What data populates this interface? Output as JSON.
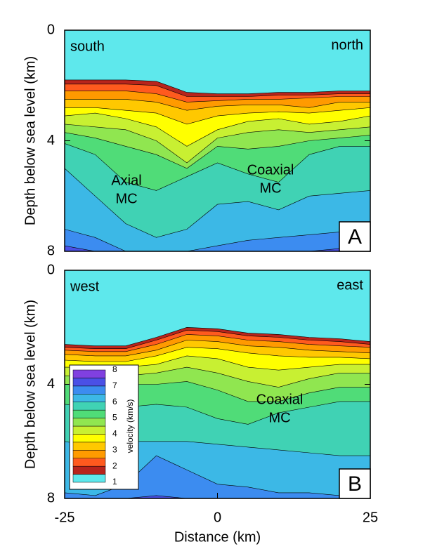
{
  "chart_data": [
    {
      "type": "contour",
      "y_label": "Depth below sea level (km)",
      "ylim": [
        0,
        8
      ],
      "yticks": [
        0,
        4,
        8
      ],
      "xlim": [
        -25,
        25
      ],
      "panel_label": "A",
      "corner_labels": [
        "south",
        "north"
      ],
      "annotations": [
        [
          "Axial",
          "MC"
        ],
        [
          "Coaxial",
          "MC"
        ]
      ],
      "x": [
        -25,
        -20,
        -15,
        -10,
        -5,
        0,
        5,
        10,
        15,
        20,
        25
      ],
      "contours": [
        {
          "level": 1.5,
          "depths": [
            1.8,
            1.8,
            1.8,
            1.85,
            2.25,
            2.3,
            2.3,
            2.25,
            2.25,
            2.2,
            2.2
          ]
        },
        {
          "level": 2,
          "depths": [
            1.95,
            1.95,
            1.95,
            2.0,
            2.4,
            2.4,
            2.4,
            2.35,
            2.35,
            2.3,
            2.3
          ]
        },
        {
          "level": 2.5,
          "depths": [
            2.2,
            2.2,
            2.2,
            2.3,
            2.6,
            2.55,
            2.5,
            2.5,
            2.45,
            2.4,
            2.4
          ]
        },
        {
          "level": 3,
          "depths": [
            2.5,
            2.5,
            2.5,
            2.6,
            2.9,
            2.75,
            2.7,
            2.7,
            2.8,
            2.6,
            2.6
          ]
        },
        {
          "level": 3.5,
          "depths": [
            2.8,
            2.8,
            2.9,
            3.0,
            3.4,
            3.1,
            3.0,
            2.95,
            3.0,
            2.9,
            2.8
          ]
        },
        {
          "level": 4,
          "depths": [
            3.1,
            3.0,
            3.2,
            3.5,
            4.2,
            3.6,
            3.3,
            3.2,
            3.4,
            3.3,
            3.1
          ]
        },
        {
          "level": 4.5,
          "depths": [
            3.4,
            3.5,
            3.6,
            4.0,
            4.8,
            3.9,
            3.7,
            3.6,
            3.7,
            3.6,
            3.5
          ]
        },
        {
          "level": 5,
          "depths": [
            3.7,
            3.9,
            4.2,
            4.5,
            5.0,
            4.2,
            4.3,
            4.2,
            4.0,
            3.9,
            3.8
          ]
        },
        {
          "level": 5.5,
          "depths": [
            4.1,
            4.5,
            5.5,
            5.8,
            5.3,
            4.8,
            5.2,
            5.5,
            4.5,
            4.2,
            4.2
          ]
        },
        {
          "level": 6,
          "depths": [
            5.0,
            6.0,
            7.0,
            7.5,
            7.2,
            6.3,
            6.2,
            6.5,
            6.0,
            5.9,
            5.8
          ]
        },
        {
          "level": 6.5,
          "depths": [
            7.2,
            7.5,
            8,
            8,
            8,
            7.8,
            7.6,
            7.5,
            7.4,
            7.3,
            7.2
          ]
        },
        {
          "level": 7,
          "depths": [
            7.8,
            8,
            8,
            8,
            8,
            8,
            8,
            8,
            8,
            7.9,
            7.8
          ]
        }
      ]
    },
    {
      "type": "contour",
      "y_label": "Depth below sea level (km)",
      "ylim": [
        0,
        8
      ],
      "yticks": [
        0,
        4,
        8
      ],
      "xlim": [
        -25,
        25
      ],
      "xticks": [
        -25,
        0,
        25
      ],
      "x_label": "Distance (km)",
      "panel_label": "B",
      "corner_labels": [
        "west",
        "east"
      ],
      "annotations": [
        [
          "Coaxial",
          "MC"
        ]
      ],
      "x": [
        -25,
        -20,
        -15,
        -10,
        -5,
        0,
        5,
        10,
        15,
        20,
        25
      ],
      "contours": [
        {
          "level": 1.5,
          "depths": [
            2.6,
            2.65,
            2.65,
            2.35,
            2.0,
            2.05,
            2.2,
            2.25,
            2.35,
            2.4,
            2.5
          ]
        },
        {
          "level": 2,
          "depths": [
            2.7,
            2.75,
            2.75,
            2.45,
            2.1,
            2.15,
            2.3,
            2.35,
            2.45,
            2.5,
            2.6
          ]
        },
        {
          "level": 2.5,
          "depths": [
            2.8,
            2.85,
            2.85,
            2.6,
            2.25,
            2.3,
            2.45,
            2.5,
            2.6,
            2.65,
            2.7
          ]
        },
        {
          "level": 3,
          "depths": [
            2.95,
            3.0,
            3.0,
            2.8,
            2.45,
            2.5,
            2.65,
            2.7,
            2.8,
            2.85,
            2.9
          ]
        },
        {
          "level": 3.5,
          "depths": [
            3.15,
            3.2,
            3.2,
            3.0,
            2.7,
            2.75,
            2.9,
            3.0,
            3.05,
            3.05,
            3.1
          ]
        },
        {
          "level": 4,
          "depths": [
            3.4,
            3.4,
            3.4,
            3.3,
            3.0,
            3.1,
            3.4,
            3.5,
            3.4,
            3.3,
            3.3
          ]
        },
        {
          "level": 4.5,
          "depths": [
            3.7,
            3.7,
            3.7,
            3.6,
            3.4,
            3.6,
            3.9,
            4.1,
            3.8,
            3.6,
            3.6
          ]
        },
        {
          "level": 5,
          "depths": [
            4.0,
            4.0,
            4.0,
            4.0,
            3.9,
            4.2,
            4.6,
            4.6,
            4.3,
            4.1,
            4.1
          ]
        },
        {
          "level": 5.5,
          "depths": [
            4.7,
            4.8,
            4.8,
            4.7,
            4.8,
            5.2,
            5.4,
            5.0,
            4.8,
            4.6,
            4.6
          ]
        },
        {
          "level": 6,
          "depths": [
            6.0,
            6.2,
            6.0,
            6.0,
            6.0,
            6.1,
            6.2,
            6.3,
            6.4,
            6.5,
            6.5
          ]
        },
        {
          "level": 6.5,
          "depths": [
            7.8,
            7.9,
            7.5,
            6.5,
            7.0,
            7.5,
            7.6,
            7.8,
            7.8,
            7.9,
            8
          ]
        },
        {
          "level": 7,
          "depths": [
            8,
            8,
            8,
            7.9,
            8,
            8,
            8,
            8,
            8,
            8,
            8
          ]
        }
      ],
      "colorbar": {
        "label": "velocity (km/s)",
        "ticks": [
          1,
          2,
          3,
          4,
          5,
          6,
          7,
          8
        ],
        "levels": [
          1,
          1.5,
          2,
          2.5,
          3,
          3.5,
          4,
          4.5,
          5,
          5.5,
          6,
          6.5,
          7,
          7.5,
          8
        ],
        "colors": [
          "#5ee8ec",
          "#b8241c",
          "#ff5a1e",
          "#ff9a00",
          "#ffc800",
          "#ffff00",
          "#c8f032",
          "#90e650",
          "#50dc78",
          "#40d2b4",
          "#3cb8e6",
          "#3c8cf0",
          "#4a50e6",
          "#8040e0"
        ]
      }
    }
  ]
}
